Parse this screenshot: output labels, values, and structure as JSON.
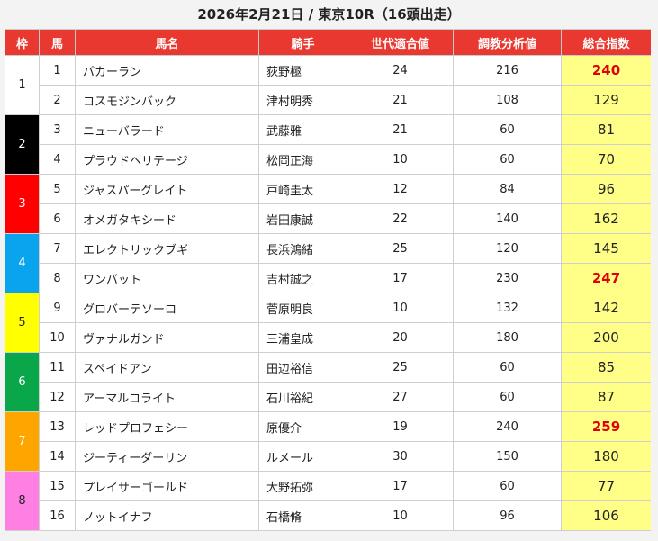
{
  "title": "2026年2月21日 / 東京10R（16頭出走）",
  "headers": [
    "枠",
    "馬",
    "馬名",
    "騎手",
    "世代適合値",
    "調教分析値",
    "総合指数"
  ],
  "waku_colors": {
    "1": {
      "bg": "#ffffff",
      "fg": "#222222"
    },
    "2": {
      "bg": "#000000",
      "fg": "#ffffff"
    },
    "3": {
      "bg": "#ff0000",
      "fg": "#ffffff"
    },
    "4": {
      "bg": "#0aa3ee",
      "fg": "#ffffff"
    },
    "5": {
      "bg": "#ffff00",
      "fg": "#222222"
    },
    "6": {
      "bg": "#0aa64a",
      "fg": "#ffffff"
    },
    "7": {
      "bg": "#ffa500",
      "fg": "#ffffff"
    },
    "8": {
      "bg": "#ff7fe3",
      "fg": "#222222"
    }
  },
  "rows": [
    {
      "waku": "1",
      "num": "1",
      "name": "パカーラン",
      "jockey": "荻野極",
      "gen": "24",
      "train": "216",
      "score": "240",
      "top": true
    },
    {
      "waku": "1",
      "num": "2",
      "name": "コスモジンバック",
      "jockey": "津村明秀",
      "gen": "21",
      "train": "108",
      "score": "129",
      "top": false
    },
    {
      "waku": "2",
      "num": "3",
      "name": "ニューバラード",
      "jockey": "武藤雅",
      "gen": "21",
      "train": "60",
      "score": "81",
      "top": false
    },
    {
      "waku": "2",
      "num": "4",
      "name": "プラウドヘリテージ",
      "jockey": "松岡正海",
      "gen": "10",
      "train": "60",
      "score": "70",
      "top": false
    },
    {
      "waku": "3",
      "num": "5",
      "name": "ジャスパーグレイト",
      "jockey": "戸崎圭太",
      "gen": "12",
      "train": "84",
      "score": "96",
      "top": false
    },
    {
      "waku": "3",
      "num": "6",
      "name": "オメガタキシード",
      "jockey": "岩田康誠",
      "gen": "22",
      "train": "140",
      "score": "162",
      "top": false
    },
    {
      "waku": "4",
      "num": "7",
      "name": "エレクトリックブギ",
      "jockey": "長浜鴻緒",
      "gen": "25",
      "train": "120",
      "score": "145",
      "top": false
    },
    {
      "waku": "4",
      "num": "8",
      "name": "ワンバット",
      "jockey": "吉村誠之",
      "gen": "17",
      "train": "230",
      "score": "247",
      "top": true
    },
    {
      "waku": "5",
      "num": "9",
      "name": "グロバーテソーロ",
      "jockey": "菅原明良",
      "gen": "10",
      "train": "132",
      "score": "142",
      "top": false
    },
    {
      "waku": "5",
      "num": "10",
      "name": "ヴァナルガンド",
      "jockey": "三浦皇成",
      "gen": "20",
      "train": "180",
      "score": "200",
      "top": false
    },
    {
      "waku": "6",
      "num": "11",
      "name": "スペイドアン",
      "jockey": "田辺裕信",
      "gen": "25",
      "train": "60",
      "score": "85",
      "top": false
    },
    {
      "waku": "6",
      "num": "12",
      "name": "アーマルコライト",
      "jockey": "石川裕紀",
      "gen": "27",
      "train": "60",
      "score": "87",
      "top": false
    },
    {
      "waku": "7",
      "num": "13",
      "name": "レッドプロフェシー",
      "jockey": "原優介",
      "gen": "19",
      "train": "240",
      "score": "259",
      "top": true
    },
    {
      "waku": "7",
      "num": "14",
      "name": "ジーティーダーリン",
      "jockey": "ルメール",
      "gen": "30",
      "train": "150",
      "score": "180",
      "top": false
    },
    {
      "waku": "8",
      "num": "15",
      "name": "プレイサーゴールド",
      "jockey": "大野拓弥",
      "gen": "17",
      "train": "60",
      "score": "77",
      "top": false
    },
    {
      "waku": "8",
      "num": "16",
      "name": "ノットイナフ",
      "jockey": "石橋脩",
      "gen": "10",
      "train": "96",
      "score": "106",
      "top": false
    }
  ]
}
